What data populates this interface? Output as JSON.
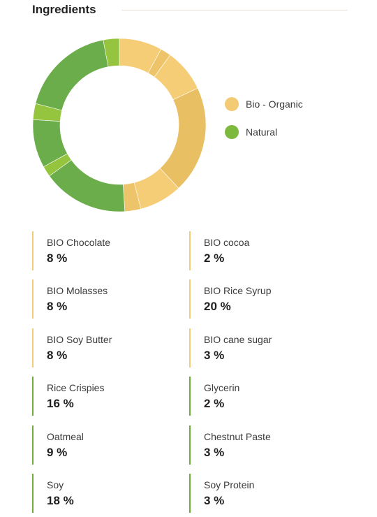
{
  "header": {
    "title": "Ingredients"
  },
  "colors": {
    "organic": "#f3cb74",
    "natural": "#7db93e",
    "organic_bar": "#f3cc7a",
    "natural_bar": "#6fac3c"
  },
  "legend": [
    {
      "label": "Bio - Organic",
      "group": "organic"
    },
    {
      "label": "Natural",
      "group": "natural"
    }
  ],
  "chart_data": {
    "type": "pie",
    "title": "",
    "donut": true,
    "series": [
      {
        "name": "Bio - Organic",
        "group": "organic"
      },
      {
        "name": "Natural",
        "group": "natural"
      }
    ],
    "slices": [
      {
        "label": "BIO Chocolate",
        "value": 8,
        "group": "organic",
        "color": "#f6cd77"
      },
      {
        "label": "BIO cocoa",
        "value": 2,
        "group": "organic",
        "color": "#eec46b"
      },
      {
        "label": "BIO Molasses",
        "value": 8,
        "group": "organic",
        "color": "#f6cd77"
      },
      {
        "label": "BIO Rice Syrup",
        "value": 20,
        "group": "organic",
        "color": "#e9bf64"
      },
      {
        "label": "BIO Soy Butter",
        "value": 8,
        "group": "organic",
        "color": "#f6cd77"
      },
      {
        "label": "BIO cane sugar",
        "value": 3,
        "group": "organic",
        "color": "#eec46b"
      },
      {
        "label": "Rice Crispies",
        "value": 16,
        "group": "natural",
        "color": "#6aad4a"
      },
      {
        "label": "Glycerin",
        "value": 2,
        "group": "natural",
        "color": "#95c43e"
      },
      {
        "label": "Oatmeal",
        "value": 9,
        "group": "natural",
        "color": "#6aad4a"
      },
      {
        "label": "Chestnut Paste",
        "value": 3,
        "group": "natural",
        "color": "#95c43e"
      },
      {
        "label": "Soy",
        "value": 18,
        "group": "natural",
        "color": "#6aad4a"
      },
      {
        "label": "Soy Protein",
        "value": 3,
        "group": "natural",
        "color": "#95c43e"
      }
    ]
  },
  "ingredients": [
    {
      "name": "BIO Chocolate",
      "value": "8 %",
      "group": "organic"
    },
    {
      "name": "BIO cocoa",
      "value": "2 %",
      "group": "organic"
    },
    {
      "name": "BIO Molasses",
      "value": "8 %",
      "group": "organic"
    },
    {
      "name": "BIO Rice Syrup",
      "value": "20 %",
      "group": "organic"
    },
    {
      "name": "BIO Soy Butter",
      "value": "8 %",
      "group": "organic"
    },
    {
      "name": "BIO cane sugar",
      "value": "3 %",
      "group": "organic"
    },
    {
      "name": "Rice Crispies",
      "value": "16 %",
      "group": "natural"
    },
    {
      "name": "Glycerin",
      "value": "2 %",
      "group": "natural"
    },
    {
      "name": "Oatmeal",
      "value": "9 %",
      "group": "natural"
    },
    {
      "name": "Chestnut Paste",
      "value": "3 %",
      "group": "natural"
    },
    {
      "name": "Soy",
      "value": "18 %",
      "group": "natural"
    },
    {
      "name": "Soy Protein",
      "value": "3 %",
      "group": "natural"
    }
  ]
}
